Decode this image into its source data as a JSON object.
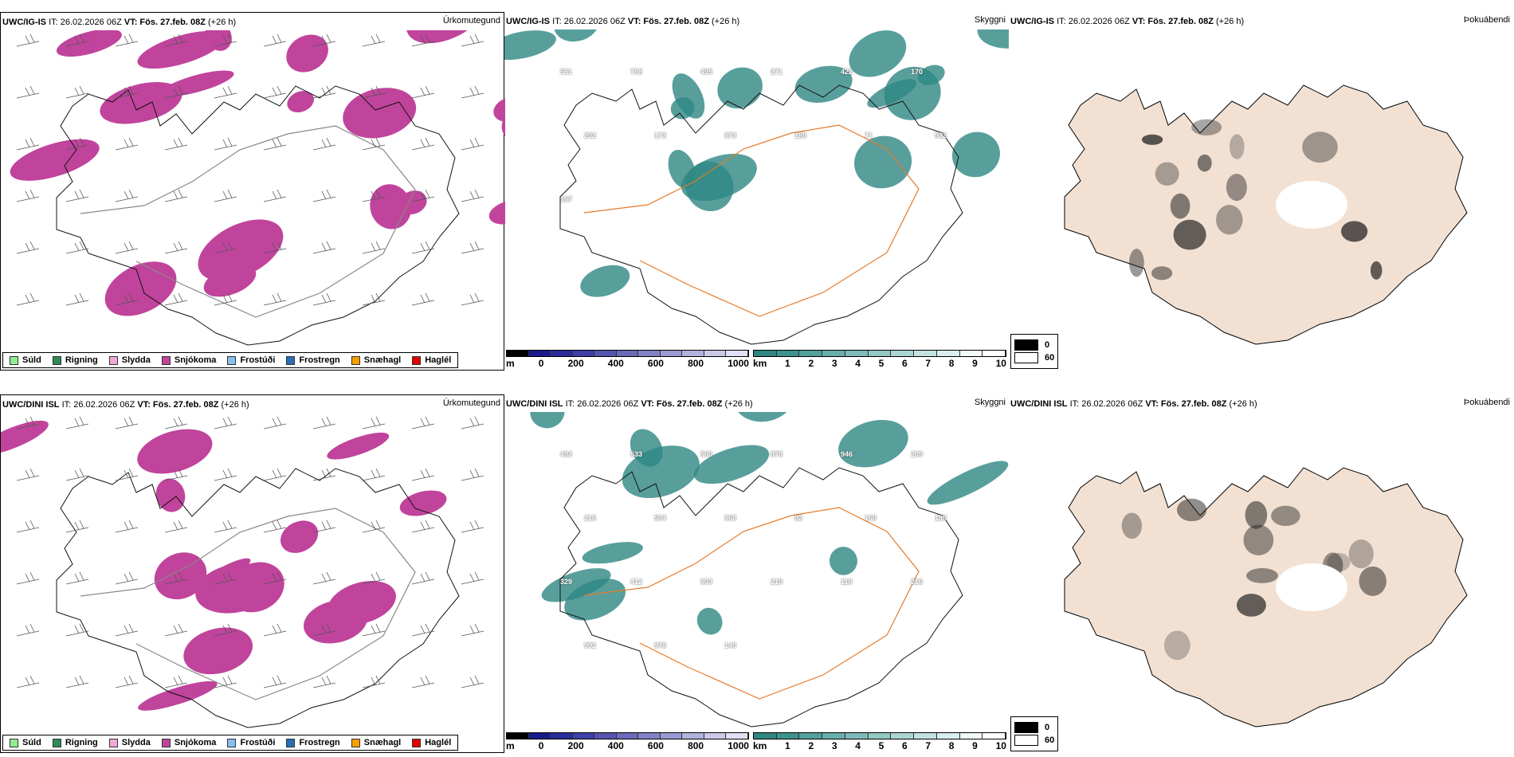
{
  "rows": [
    {
      "model": "UWC/IG-IS",
      "it": "IT: 26.02.2026 06Z",
      "vt": "VT: Fös. 27.feb. 08Z",
      "lead": "(+26 h)",
      "vis_labels": [
        "561",
        "798",
        "495",
        "271",
        "422",
        "170",
        "202",
        "173",
        "673",
        "189",
        "71",
        "932",
        "167"
      ]
    },
    {
      "model": "UWC/DINI ISL",
      "it": "IT: 26.02.2026 06Z",
      "vt": "VT: Fös. 27.feb. 08Z",
      "lead": "(+26 h)",
      "vis_labels": [
        "492",
        "533",
        "560",
        "878",
        "946",
        "209",
        "216",
        "584",
        "968",
        "92",
        "160",
        "189",
        "329",
        "412",
        "903",
        "219",
        "119",
        "216",
        "992",
        "978",
        "140"
      ]
    }
  ],
  "panel_titles": [
    "Úrkomutegund",
    "Skyggni",
    "Þokuábendi"
  ],
  "precip_legend": [
    {
      "label": "Súld",
      "color": "#90ee90"
    },
    {
      "label": "Rigning",
      "color": "#2e8b57"
    },
    {
      "label": "Slydda",
      "color": "#f4a6d7"
    },
    {
      "label": "Snjókoma",
      "color": "#c0449c"
    },
    {
      "label": "Frostúði",
      "color": "#87bff0"
    },
    {
      "label": "Frostregn",
      "color": "#2a6fb5"
    },
    {
      "label": "Snæhagl",
      "color": "#f5a000"
    },
    {
      "label": "Haglél",
      "color": "#e00000"
    }
  ],
  "cloudbase_bar": {
    "unit": "m",
    "ticks": [
      "0",
      "200",
      "400",
      "600",
      "800",
      "1000"
    ]
  },
  "visibility_bar": {
    "unit": "km",
    "ticks": [
      "1",
      "2",
      "3",
      "4",
      "5",
      "6",
      "7",
      "8",
      "9",
      "10"
    ]
  },
  "fog_legend": [
    "0",
    "60"
  ],
  "colors": {
    "snow": "#c0449c",
    "teal": "#2e8783",
    "roads": "#e67a2a",
    "land": "#f2e1d3"
  }
}
